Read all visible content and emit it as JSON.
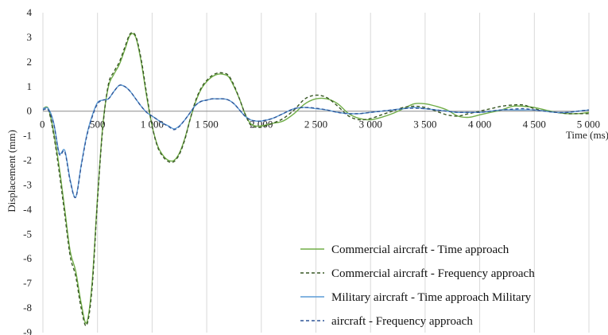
{
  "chart_data": {
    "type": "line",
    "xlabel": "Time (ms)",
    "ylabel": "Displacement (mm)",
    "xlim": [
      0,
      5000
    ],
    "ylim": [
      -9,
      4
    ],
    "x_ticks": [
      0,
      500,
      1000,
      1500,
      2000,
      2500,
      3000,
      3500,
      4000,
      4500,
      5000
    ],
    "x_tick_labels": [
      "0",
      "500",
      "1 000",
      "1 500",
      "2 000",
      "2 500",
      "3 000",
      "3 500",
      "4 000",
      "4 500",
      "5 000"
    ],
    "y_ticks": [
      4,
      3,
      2,
      1,
      0,
      -1,
      -2,
      -3,
      -4,
      -5,
      -6,
      -7,
      -8,
      -9
    ],
    "grid": "vertical",
    "legend_position": "bottom-right",
    "series": [
      {
        "name": "Commercial aircraft - Time approach",
        "color": "#70ad47",
        "dash": "solid",
        "x": [
          0,
          50,
          100,
          150,
          200,
          250,
          300,
          350,
          400,
          450,
          500,
          550,
          600,
          650,
          700,
          750,
          800,
          850,
          900,
          950,
          1000,
          1050,
          1100,
          1150,
          1200,
          1250,
          1300,
          1350,
          1400,
          1450,
          1500,
          1550,
          1600,
          1650,
          1700,
          1750,
          1800,
          1850,
          1900,
          1950,
          2000,
          2100,
          2200,
          2300,
          2400,
          2500,
          2600,
          2700,
          2800,
          2900,
          3000,
          3100,
          3200,
          3300,
          3400,
          3500,
          3600,
          3700,
          3800,
          3900,
          4000,
          4100,
          4200,
          4300,
          4400,
          4500,
          4600,
          4700,
          4800,
          4900,
          5000
        ],
        "values": [
          0.1,
          0.1,
          -0.9,
          -2.3,
          -4.0,
          -5.7,
          -6.5,
          -7.8,
          -8.6,
          -7.0,
          -3.5,
          -0.5,
          1.0,
          1.5,
          1.9,
          2.5,
          3.1,
          3.0,
          2.0,
          0.6,
          -0.6,
          -1.4,
          -1.8,
          -2.0,
          -2.0,
          -1.7,
          -1.1,
          -0.3,
          0.4,
          0.9,
          1.2,
          1.4,
          1.5,
          1.5,
          1.4,
          1.0,
          0.5,
          -0.1,
          -0.5,
          -0.6,
          -0.6,
          -0.5,
          -0.4,
          -0.1,
          0.3,
          0.5,
          0.5,
          0.3,
          -0.1,
          -0.3,
          -0.35,
          -0.25,
          -0.1,
          0.1,
          0.3,
          0.3,
          0.2,
          0.05,
          -0.2,
          -0.25,
          -0.15,
          -0.05,
          0.05,
          0.2,
          0.2,
          0.15,
          0.05,
          -0.05,
          -0.1,
          -0.1,
          -0.05
        ]
      },
      {
        "name": "Commercial aircraft - Frequency approach",
        "color": "#375623",
        "dash": "dashed",
        "x": [
          0,
          50,
          100,
          150,
          200,
          250,
          300,
          350,
          400,
          450,
          500,
          550,
          600,
          650,
          700,
          750,
          800,
          850,
          900,
          950,
          1000,
          1050,
          1100,
          1150,
          1200,
          1250,
          1300,
          1350,
          1400,
          1450,
          1500,
          1550,
          1600,
          1650,
          1700,
          1750,
          1800,
          1850,
          1900,
          1950,
          2000,
          2100,
          2200,
          2300,
          2400,
          2500,
          2600,
          2700,
          2800,
          2900,
          3000,
          3100,
          3200,
          3300,
          3400,
          3500,
          3600,
          3700,
          3800,
          3900,
          4000,
          4100,
          4200,
          4300,
          4400,
          4500,
          4600,
          4700,
          4800,
          4900,
          5000
        ],
        "values": [
          0.1,
          0.05,
          -1.0,
          -2.5,
          -4.2,
          -5.9,
          -6.7,
          -8.0,
          -8.7,
          -7.2,
          -3.6,
          -0.6,
          1.1,
          1.6,
          2.0,
          2.6,
          3.15,
          3.05,
          2.1,
          0.7,
          -0.6,
          -1.45,
          -1.85,
          -2.05,
          -2.05,
          -1.75,
          -1.15,
          -0.3,
          0.45,
          0.95,
          1.25,
          1.45,
          1.55,
          1.55,
          1.45,
          1.05,
          0.5,
          -0.1,
          -0.55,
          -0.65,
          -0.65,
          -0.5,
          -0.3,
          0.05,
          0.5,
          0.65,
          0.55,
          0.2,
          -0.2,
          -0.35,
          -0.3,
          -0.15,
          0.0,
          0.15,
          0.2,
          0.15,
          0.0,
          -0.15,
          -0.2,
          -0.1,
          0.0,
          0.1,
          0.2,
          0.25,
          0.25,
          0.1,
          0.0,
          -0.05,
          -0.1,
          -0.1,
          -0.1
        ]
      },
      {
        "name": "Military aircraft - Time approach Military",
        "color": "#5b9bd5",
        "dash": "solid",
        "x": [
          0,
          50,
          100,
          150,
          200,
          250,
          300,
          350,
          400,
          450,
          500,
          550,
          600,
          650,
          700,
          750,
          800,
          850,
          900,
          950,
          1000,
          1050,
          1100,
          1150,
          1200,
          1250,
          1300,
          1350,
          1400,
          1450,
          1500,
          1550,
          1600,
          1650,
          1700,
          1750,
          1800,
          1850,
          1900,
          1950,
          2000,
          2100,
          2200,
          2300,
          2400,
          2500,
          2600,
          2700,
          2800,
          2900,
          3000,
          3100,
          3200,
          3300,
          3400,
          3500,
          3600,
          3700,
          3800,
          3900,
          4000,
          4100,
          4200,
          4300,
          4400,
          4500,
          4600,
          4700,
          4800,
          4900,
          5000
        ],
        "values": [
          0.1,
          0.1,
          -0.5,
          -1.7,
          -1.6,
          -2.8,
          -3.5,
          -2.2,
          -1.0,
          -0.2,
          0.35,
          0.45,
          0.5,
          0.8,
          1.05,
          1.0,
          0.8,
          0.5,
          0.2,
          -0.05,
          -0.2,
          -0.35,
          -0.5,
          -0.6,
          -0.72,
          -0.6,
          -0.35,
          -0.05,
          0.25,
          0.4,
          0.45,
          0.5,
          0.5,
          0.5,
          0.45,
          0.3,
          0.05,
          -0.2,
          -0.35,
          -0.4,
          -0.4,
          -0.3,
          -0.1,
          0.1,
          0.15,
          0.1,
          0.05,
          -0.05,
          -0.1,
          -0.1,
          -0.05,
          0.0,
          0.05,
          0.1,
          0.15,
          0.1,
          0.05,
          0.0,
          -0.05,
          -0.05,
          -0.05,
          0.0,
          0.05,
          0.05,
          0.05,
          0.05,
          0.0,
          -0.05,
          -0.05,
          0.0,
          0.05
        ]
      },
      {
        "name": "aircraft - Frequency approach",
        "color": "#2f5597",
        "dash": "dashed",
        "x": [
          0,
          50,
          100,
          150,
          200,
          250,
          300,
          350,
          400,
          450,
          500,
          550,
          600,
          650,
          700,
          750,
          800,
          850,
          900,
          950,
          1000,
          1050,
          1100,
          1150,
          1200,
          1250,
          1300,
          1350,
          1400,
          1450,
          1500,
          1550,
          1600,
          1650,
          1700,
          1750,
          1800,
          1850,
          1900,
          1950,
          2000,
          2100,
          2200,
          2300,
          2400,
          2500,
          2600,
          2700,
          2800,
          2900,
          3000,
          3100,
          3200,
          3300,
          3400,
          3500,
          3600,
          3700,
          3800,
          3900,
          4000,
          4100,
          4200,
          4300,
          4400,
          4500,
          4600,
          4700,
          4800,
          4900,
          5000
        ],
        "values": [
          0.05,
          0.05,
          -0.55,
          -1.75,
          -1.65,
          -2.85,
          -3.5,
          -2.25,
          -1.05,
          -0.25,
          0.3,
          0.45,
          0.5,
          0.8,
          1.05,
          1.0,
          0.8,
          0.5,
          0.2,
          -0.05,
          -0.2,
          -0.35,
          -0.5,
          -0.62,
          -0.75,
          -0.62,
          -0.35,
          -0.05,
          0.25,
          0.4,
          0.45,
          0.5,
          0.5,
          0.5,
          0.45,
          0.3,
          0.05,
          -0.2,
          -0.35,
          -0.4,
          -0.4,
          -0.3,
          -0.1,
          0.1,
          0.15,
          0.12,
          0.05,
          -0.05,
          -0.1,
          -0.1,
          -0.05,
          0.0,
          0.05,
          0.1,
          0.12,
          0.1,
          0.05,
          0.0,
          -0.05,
          -0.05,
          -0.05,
          0.0,
          0.05,
          0.08,
          0.1,
          0.05,
          0.0,
          -0.05,
          -0.05,
          0.0,
          0.05
        ]
      }
    ]
  }
}
